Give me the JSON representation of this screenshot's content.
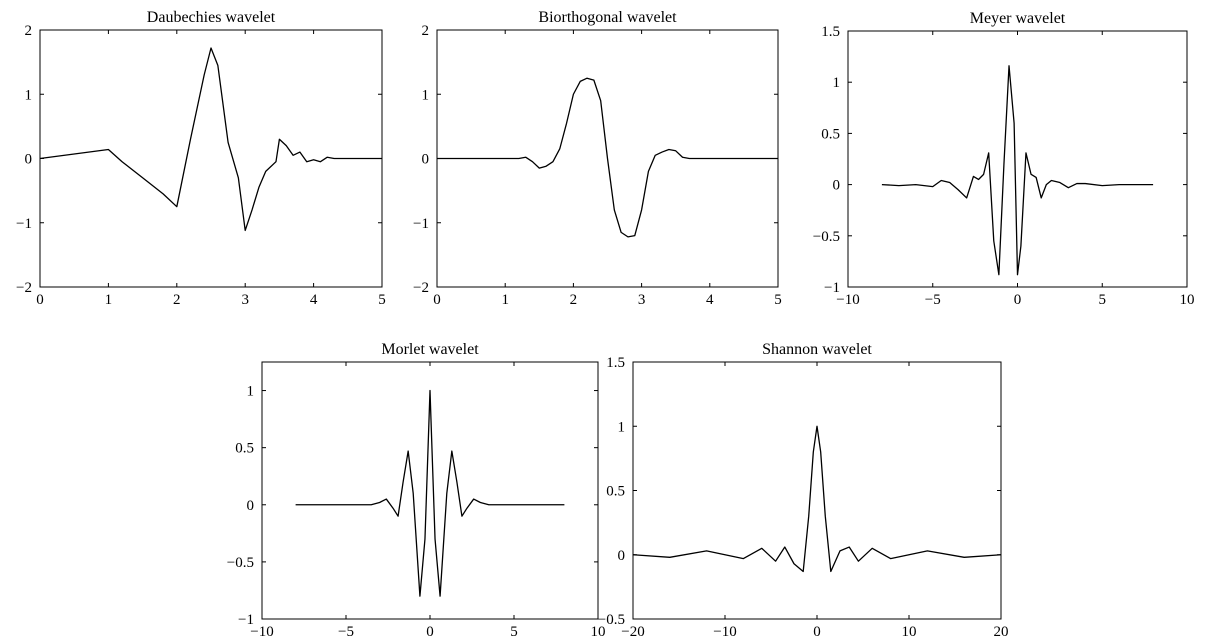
{
  "chart_data": [
    {
      "type": "line",
      "title": "Daubechies wavelet",
      "xlabel": "",
      "ylabel": "",
      "xlim": [
        0,
        5
      ],
      "ylim": [
        -2,
        2
      ],
      "xticks": [
        0,
        1,
        2,
        3,
        4,
        5
      ],
      "yticks": [
        -2,
        -1,
        0,
        1,
        2
      ],
      "xtick_labels": [
        "0",
        "1",
        "2",
        "3",
        "4",
        "5"
      ],
      "ytick_labels": [
        "−2",
        "−1",
        "0",
        "1",
        "2"
      ],
      "grid": false,
      "series": [
        {
          "x": [
            0,
            0.5,
            1.0,
            1.2,
            1.5,
            1.8,
            2.0,
            2.2,
            2.3,
            2.4,
            2.5,
            2.6,
            2.75,
            2.9,
            3.0,
            3.1,
            3.2,
            3.3,
            3.45,
            3.5,
            3.6,
            3.7,
            3.8,
            3.9,
            4.0,
            4.1,
            4.2,
            4.3,
            4.5,
            5.0
          ],
          "y": [
            0,
            0.07,
            0.14,
            -0.05,
            -0.3,
            -0.55,
            -0.75,
            0.3,
            0.8,
            1.3,
            1.72,
            1.45,
            0.25,
            -0.3,
            -1.12,
            -0.8,
            -0.45,
            -0.2,
            -0.05,
            0.3,
            0.2,
            0.05,
            0.1,
            -0.05,
            -0.02,
            -0.05,
            0.02,
            0.0,
            0.0,
            0.0
          ]
        }
      ]
    },
    {
      "type": "line",
      "title": "Biorthogonal wavelet",
      "xlabel": "",
      "ylabel": "",
      "xlim": [
        0,
        5
      ],
      "ylim": [
        -2,
        2
      ],
      "xticks": [
        0,
        1,
        2,
        3,
        4,
        5
      ],
      "yticks": [
        -2,
        -1,
        0,
        1,
        2
      ],
      "xtick_labels": [
        "0",
        "1",
        "2",
        "3",
        "4",
        "5"
      ],
      "ytick_labels": [
        "−2",
        "−1",
        "0",
        "1",
        "2"
      ],
      "grid": false,
      "series": [
        {
          "x": [
            0,
            1.2,
            1.3,
            1.4,
            1.5,
            1.6,
            1.7,
            1.8,
            1.9,
            2.0,
            2.1,
            2.2,
            2.3,
            2.4,
            2.5,
            2.6,
            2.7,
            2.8,
            2.9,
            3.0,
            3.1,
            3.2,
            3.3,
            3.4,
            3.5,
            3.6,
            3.7,
            3.8,
            5.0
          ],
          "y": [
            0,
            0.0,
            0.02,
            -0.05,
            -0.15,
            -0.12,
            -0.05,
            0.15,
            0.55,
            1.0,
            1.2,
            1.25,
            1.22,
            0.9,
            0.0,
            -0.8,
            -1.15,
            -1.22,
            -1.2,
            -0.8,
            -0.2,
            0.05,
            0.1,
            0.14,
            0.12,
            0.02,
            0.0,
            0.0,
            0.0
          ]
        }
      ]
    },
    {
      "type": "line",
      "title": "Meyer wavelet",
      "xlabel": "",
      "ylabel": "",
      "xlim": [
        -10,
        10
      ],
      "ylim": [
        -1,
        1.5
      ],
      "xticks": [
        -10,
        -5,
        0,
        5,
        10
      ],
      "yticks": [
        -1,
        -0.5,
        0,
        0.5,
        1,
        1.5
      ],
      "xtick_labels": [
        "−10",
        "−5",
        "0",
        "5",
        "10"
      ],
      "ytick_labels": [
        "−1",
        "−0.5",
        "0",
        "0.5",
        "1",
        "1.5"
      ],
      "grid": false,
      "series": [
        {
          "x": [
            -8,
            -7,
            -6,
            -5,
            -4.5,
            -4,
            -3.5,
            -3,
            -2.6,
            -2.3,
            -2,
            -1.7,
            -1.4,
            -1.1,
            -0.8,
            -0.5,
            -0.2,
            0,
            0.2,
            0.5,
            0.8,
            1.1,
            1.4,
            1.7,
            2,
            2.5,
            3,
            3.5,
            4,
            5,
            6,
            7,
            8
          ],
          "y": [
            0,
            -0.01,
            0.0,
            -0.02,
            0.04,
            0.02,
            -0.05,
            -0.13,
            0.08,
            0.05,
            0.1,
            0.31,
            -0.55,
            -0.88,
            0.2,
            1.16,
            0.6,
            -0.88,
            -0.6,
            0.31,
            0.1,
            0.07,
            -0.13,
            0.0,
            0.04,
            0.02,
            -0.03,
            0.01,
            0.01,
            -0.01,
            0.0,
            0.0,
            0.0
          ]
        }
      ]
    },
    {
      "type": "line",
      "title": "Morlet wavelet",
      "xlabel": "",
      "ylabel": "",
      "xlim": [
        -10,
        10
      ],
      "ylim": [
        -1,
        1.25
      ],
      "xticks": [
        -10,
        -5,
        0,
        5,
        10
      ],
      "yticks": [
        -1,
        -0.5,
        0,
        0.5,
        1
      ],
      "xtick_labels": [
        "−10",
        "−5",
        "0",
        "5",
        "10"
      ],
      "ytick_labels": [
        "−1",
        "−0.5",
        "0",
        "0.5",
        "1"
      ],
      "grid": false,
      "series": [
        {
          "x": [
            -8,
            -3.5,
            -3,
            -2.6,
            -2.2,
            -1.9,
            -1.6,
            -1.3,
            -1.0,
            -0.6,
            -0.3,
            0,
            0.3,
            0.6,
            1.0,
            1.3,
            1.6,
            1.9,
            2.2,
            2.6,
            3,
            3.5,
            8
          ],
          "y": [
            0,
            0.0,
            0.02,
            0.05,
            -0.03,
            -0.1,
            0.2,
            0.47,
            0.1,
            -0.8,
            -0.3,
            1.0,
            -0.3,
            -0.8,
            0.1,
            0.47,
            0.2,
            -0.1,
            -0.03,
            0.05,
            0.02,
            0.0,
            0.0
          ]
        }
      ]
    },
    {
      "type": "line",
      "title": "Shannon wavelet",
      "xlabel": "",
      "ylabel": "",
      "xlim": [
        -20,
        20
      ],
      "ylim": [
        -0.5,
        1.5
      ],
      "xticks": [
        -20,
        -10,
        0,
        10,
        20
      ],
      "yticks": [
        -0.5,
        0,
        0.5,
        1,
        1.5
      ],
      "xtick_labels": [
        "−20",
        "−10",
        "0",
        "10",
        "20"
      ],
      "ytick_labels": [
        "−0.5",
        "0",
        "0.5",
        "1",
        "1.5"
      ],
      "grid": false,
      "series": [
        {
          "x": [
            -20,
            -16,
            -12,
            -8,
            -6,
            -4.5,
            -3.5,
            -2.5,
            -1.5,
            -0.9,
            -0.4,
            0,
            0.4,
            0.9,
            1.5,
            2.5,
            3.5,
            4.5,
            6,
            8,
            12,
            16,
            20
          ],
          "y": [
            0.0,
            -0.02,
            0.03,
            -0.03,
            0.05,
            -0.05,
            0.06,
            -0.07,
            -0.13,
            0.3,
            0.8,
            1.0,
            0.8,
            0.3,
            -0.13,
            0.03,
            0.06,
            -0.05,
            0.05,
            -0.03,
            0.03,
            -0.02,
            0.0
          ]
        }
      ]
    }
  ]
}
